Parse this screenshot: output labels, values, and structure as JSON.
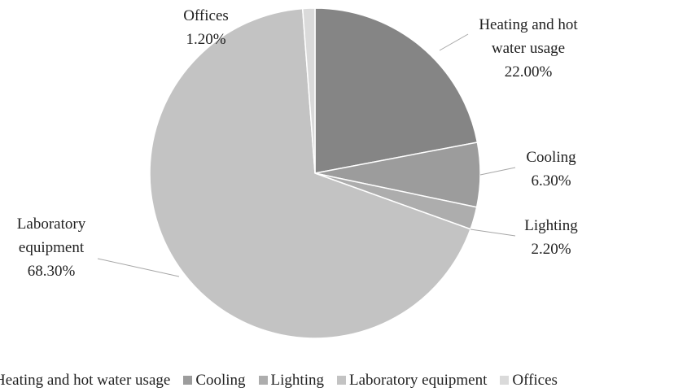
{
  "chart_data": {
    "type": "pie",
    "categories": [
      "Heating and hot water usage",
      "Cooling",
      "Lighting",
      "Laboratory equipment",
      "Offices"
    ],
    "values": [
      22,
      6.3,
      2.2,
      68.3,
      1.2
    ],
    "value_labels": [
      "22.00%",
      "6.30%",
      "2.20%",
      "68.30%",
      "1.20%"
    ],
    "colors": [
      "#858585",
      "#9c9c9c",
      "#adadad",
      "#c3c3c3",
      "#dadada"
    ],
    "legend": "bottom"
  }
}
